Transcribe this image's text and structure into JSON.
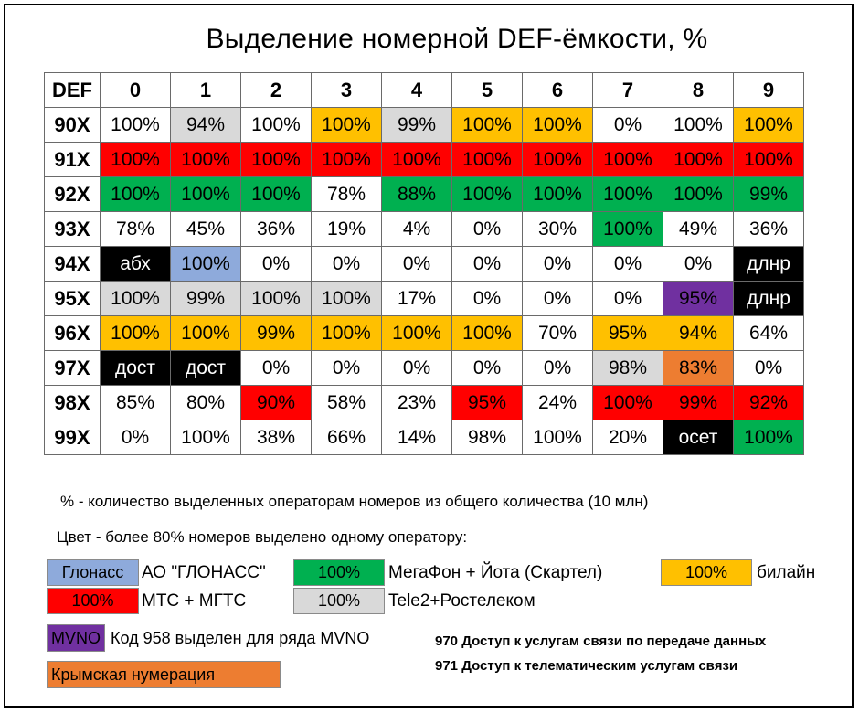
{
  "title": "Выделение номерной DEF-ёмкости, %",
  "colors": {
    "glonass": "#8eaadb",
    "megafon": "#00b050",
    "beeline": "#ffc000",
    "mts": "#ff0000",
    "tele2": "#d9d9d9",
    "mvno": "#7030a0",
    "crimea": "#ed7d31",
    "black": "#000000",
    "white": "#ffffff"
  },
  "chart_data": {
    "type": "table",
    "corner": "DEF",
    "columns": [
      "0",
      "1",
      "2",
      "3",
      "4",
      "5",
      "6",
      "7",
      "8",
      "9"
    ],
    "rows": [
      {
        "label": "90X",
        "cells": [
          {
            "v": "100%",
            "c": "white"
          },
          {
            "v": "94%",
            "c": "tele2"
          },
          {
            "v": "100%",
            "c": "white"
          },
          {
            "v": "100%",
            "c": "beeline"
          },
          {
            "v": "99%",
            "c": "tele2"
          },
          {
            "v": "100%",
            "c": "beeline"
          },
          {
            "v": "100%",
            "c": "beeline"
          },
          {
            "v": "0%",
            "c": "white"
          },
          {
            "v": "100%",
            "c": "white"
          },
          {
            "v": "100%",
            "c": "beeline"
          }
        ]
      },
      {
        "label": "91X",
        "cells": [
          {
            "v": "100%",
            "c": "mts"
          },
          {
            "v": "100%",
            "c": "mts"
          },
          {
            "v": "100%",
            "c": "mts"
          },
          {
            "v": "100%",
            "c": "mts"
          },
          {
            "v": "100%",
            "c": "mts"
          },
          {
            "v": "100%",
            "c": "mts"
          },
          {
            "v": "100%",
            "c": "mts"
          },
          {
            "v": "100%",
            "c": "mts"
          },
          {
            "v": "100%",
            "c": "mts"
          },
          {
            "v": "100%",
            "c": "mts"
          }
        ]
      },
      {
        "label": "92X",
        "cells": [
          {
            "v": "100%",
            "c": "megafon"
          },
          {
            "v": "100%",
            "c": "megafon"
          },
          {
            "v": "100%",
            "c": "megafon"
          },
          {
            "v": "78%",
            "c": "white"
          },
          {
            "v": "88%",
            "c": "megafon"
          },
          {
            "v": "100%",
            "c": "megafon"
          },
          {
            "v": "100%",
            "c": "megafon"
          },
          {
            "v": "100%",
            "c": "megafon"
          },
          {
            "v": "100%",
            "c": "megafon"
          },
          {
            "v": "99%",
            "c": "megafon"
          }
        ]
      },
      {
        "label": "93X",
        "cells": [
          {
            "v": "78%",
            "c": "white"
          },
          {
            "v": "45%",
            "c": "white"
          },
          {
            "v": "36%",
            "c": "white"
          },
          {
            "v": "19%",
            "c": "white"
          },
          {
            "v": "4%",
            "c": "white"
          },
          {
            "v": "0%",
            "c": "white"
          },
          {
            "v": "30%",
            "c": "white"
          },
          {
            "v": "100%",
            "c": "megafon"
          },
          {
            "v": "49%",
            "c": "white"
          },
          {
            "v": "36%",
            "c": "white"
          }
        ]
      },
      {
        "label": "94X",
        "cells": [
          {
            "v": "абх",
            "c": "black"
          },
          {
            "v": "100%",
            "c": "glonass"
          },
          {
            "v": "0%",
            "c": "white"
          },
          {
            "v": "0%",
            "c": "white"
          },
          {
            "v": "0%",
            "c": "white"
          },
          {
            "v": "0%",
            "c": "white"
          },
          {
            "v": "0%",
            "c": "white"
          },
          {
            "v": "0%",
            "c": "white"
          },
          {
            "v": "0%",
            "c": "white"
          },
          {
            "v": "длнр",
            "c": "black"
          }
        ]
      },
      {
        "label": "95X",
        "cells": [
          {
            "v": "100%",
            "c": "tele2"
          },
          {
            "v": "99%",
            "c": "tele2"
          },
          {
            "v": "100%",
            "c": "tele2"
          },
          {
            "v": "100%",
            "c": "tele2"
          },
          {
            "v": "17%",
            "c": "white"
          },
          {
            "v": "0%",
            "c": "white"
          },
          {
            "v": "0%",
            "c": "white"
          },
          {
            "v": "0%",
            "c": "white"
          },
          {
            "v": "95%",
            "c": "mvno"
          },
          {
            "v": "длнр",
            "c": "black"
          }
        ]
      },
      {
        "label": "96X",
        "cells": [
          {
            "v": "100%",
            "c": "beeline"
          },
          {
            "v": "100%",
            "c": "beeline"
          },
          {
            "v": "99%",
            "c": "beeline"
          },
          {
            "v": "100%",
            "c": "beeline"
          },
          {
            "v": "100%",
            "c": "beeline"
          },
          {
            "v": "100%",
            "c": "beeline"
          },
          {
            "v": "70%",
            "c": "white"
          },
          {
            "v": "95%",
            "c": "beeline"
          },
          {
            "v": "94%",
            "c": "beeline"
          },
          {
            "v": "64%",
            "c": "white"
          }
        ]
      },
      {
        "label": "97X",
        "cells": [
          {
            "v": "дост",
            "c": "black"
          },
          {
            "v": "дост",
            "c": "black"
          },
          {
            "v": "0%",
            "c": "white"
          },
          {
            "v": "0%",
            "c": "white"
          },
          {
            "v": "0%",
            "c": "white"
          },
          {
            "v": "0%",
            "c": "white"
          },
          {
            "v": "0%",
            "c": "white"
          },
          {
            "v": "98%",
            "c": "tele2"
          },
          {
            "v": "83%",
            "c": "crimea"
          },
          {
            "v": "0%",
            "c": "white"
          }
        ]
      },
      {
        "label": "98X",
        "cells": [
          {
            "v": "85%",
            "c": "white"
          },
          {
            "v": "80%",
            "c": "white"
          },
          {
            "v": "90%",
            "c": "mts"
          },
          {
            "v": "58%",
            "c": "white"
          },
          {
            "v": "23%",
            "c": "white"
          },
          {
            "v": "95%",
            "c": "mts"
          },
          {
            "v": "24%",
            "c": "white"
          },
          {
            "v": "100%",
            "c": "mts"
          },
          {
            "v": "99%",
            "c": "mts"
          },
          {
            "v": "92%",
            "c": "mts"
          }
        ]
      },
      {
        "label": "99X",
        "cells": [
          {
            "v": "0%",
            "c": "white"
          },
          {
            "v": "100%",
            "c": "white"
          },
          {
            "v": "38%",
            "c": "white"
          },
          {
            "v": "66%",
            "c": "white"
          },
          {
            "v": "14%",
            "c": "white"
          },
          {
            "v": "98%",
            "c": "white"
          },
          {
            "v": "100%",
            "c": "white"
          },
          {
            "v": "20%",
            "c": "white"
          },
          {
            "v": "осет",
            "c": "black"
          },
          {
            "v": "100%",
            "c": "megafon"
          }
        ]
      }
    ]
  },
  "notes": {
    "percent": "% - количество выделенных операторам номеров из общего количества (10 млн)",
    "color": "Цвет - более 80% номеров выделено одному оператору:"
  },
  "legend": {
    "glonass_swatch": "Глонасс",
    "glonass_label": "АО \"ГЛОНАСС\"",
    "megafon_swatch": "100%",
    "megafon_label": "МегаФон + Йота (Скартел)",
    "beeline_swatch": "100%",
    "beeline_label": "билайн",
    "mts_swatch": "100%",
    "mts_label": "МТС + МГТС",
    "tele2_swatch": "100%",
    "tele2_label": "Tele2+Ростелеком",
    "mvno_swatch": "MVNO",
    "mvno_label": "Код 958 выделен для ряда MVNO",
    "crimea_swatch": "Крымская нумерация"
  },
  "codes": {
    "c970": "970 Доступ к услугам связи по передаче данных",
    "c971": "971 Доступ к телематическим услугам связи"
  }
}
